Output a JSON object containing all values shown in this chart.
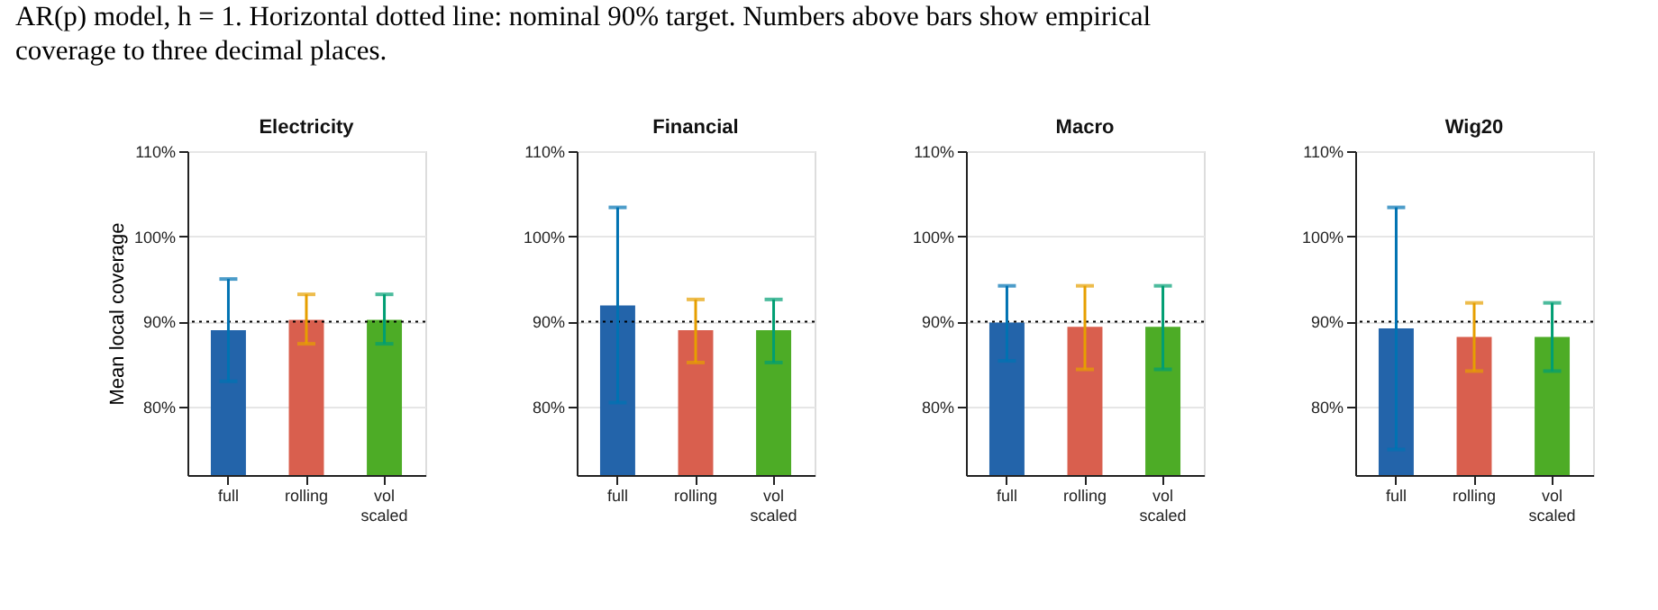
{
  "chart_data": [
    {
      "type": "bar",
      "title": "Electricity",
      "ylabel": "Mean local coverage",
      "annotations": [
        "AR(p) model, h = 1. Horizontal dotted line: nominal 90% target. Numbers above bars show empirical coverage to three decimal places."
      ],
      "categories": [
        "full",
        "rolling",
        "vol scaled"
      ],
      "values": [
        89.0,
        90.2,
        90.2
      ],
      "errors": [
        [
          83.0,
          95.0
        ],
        [
          87.4,
          93.2
        ],
        [
          87.4,
          93.2
        ]
      ],
      "colors": [
        "#2364aa",
        "#d95f4e",
        "#4dac26"
      ],
      "ylim": [
        72,
        110
      ],
      "yticks": [
        {
          "value": 80,
          "label": "80%"
        },
        {
          "value": 90,
          "label": "90%"
        },
        {
          "value": 100,
          "label": "100%"
        },
        {
          "value": 110,
          "label": "110%"
        }
      ],
      "grid": "y",
      "ref_lines": [
        {
          "axis": "y",
          "value": 90,
          "line_style": "dotted",
          "color": "#000000"
        }
      ]
    },
    {
      "type": "bar",
      "title": "Financial",
      "categories": [
        "full",
        "rolling",
        "vol scaled"
      ],
      "values": [
        91.9,
        89.0,
        89.0
      ],
      "errors": [
        [
          80.5,
          103.4
        ],
        [
          85.2,
          92.6
        ],
        [
          85.2,
          92.6
        ]
      ],
      "colors": [
        "#2364aa",
        "#d95f4e",
        "#4dac26"
      ],
      "ylim": [
        72,
        110
      ],
      "yticks": [
        {
          "value": 80,
          "label": "80%"
        },
        {
          "value": 90,
          "label": "90%"
        },
        {
          "value": 100,
          "label": "100%"
        },
        {
          "value": 110,
          "label": "110%"
        }
      ],
      "grid": "y",
      "ref_lines": [
        {
          "axis": "y",
          "value": 90,
          "line_style": "dotted",
          "color": "#000000"
        }
      ]
    },
    {
      "type": "bar",
      "title": "Macro",
      "categories": [
        "full",
        "rolling",
        "vol scaled"
      ],
      "values": [
        89.9,
        89.4,
        89.4
      ],
      "errors": [
        [
          85.4,
          94.2
        ],
        [
          84.4,
          94.2
        ],
        [
          84.4,
          94.2
        ]
      ],
      "colors": [
        "#2364aa",
        "#d95f4e",
        "#4dac26"
      ],
      "ylim": [
        72,
        110
      ],
      "yticks": [
        {
          "value": 80,
          "label": "80%"
        },
        {
          "value": 90,
          "label": "90%"
        },
        {
          "value": 100,
          "label": "100%"
        },
        {
          "value": 110,
          "label": "110%"
        }
      ],
      "grid": "y",
      "ref_lines": [
        {
          "axis": "y",
          "value": 90,
          "line_style": "dotted",
          "color": "#000000"
        }
      ]
    },
    {
      "type": "bar",
      "title": "Wig20",
      "categories": [
        "full",
        "rolling",
        "vol scaled"
      ],
      "values": [
        89.2,
        88.2,
        88.2
      ],
      "errors": [
        [
          75.0,
          103.4
        ],
        [
          84.2,
          92.2
        ],
        [
          84.2,
          92.2
        ]
      ],
      "colors": [
        "#2364aa",
        "#d95f4e",
        "#4dac26"
      ],
      "ylim": [
        72,
        110
      ],
      "yticks": [
        {
          "value": 80,
          "label": "80%"
        },
        {
          "value": 90,
          "label": "90%"
        },
        {
          "value": 100,
          "label": "100%"
        },
        {
          "value": 110,
          "label": "110%"
        }
      ],
      "grid": "y",
      "ref_lines": [
        {
          "axis": "y",
          "value": 90,
          "line_style": "dotted",
          "color": "#000000"
        }
      ]
    }
  ]
}
